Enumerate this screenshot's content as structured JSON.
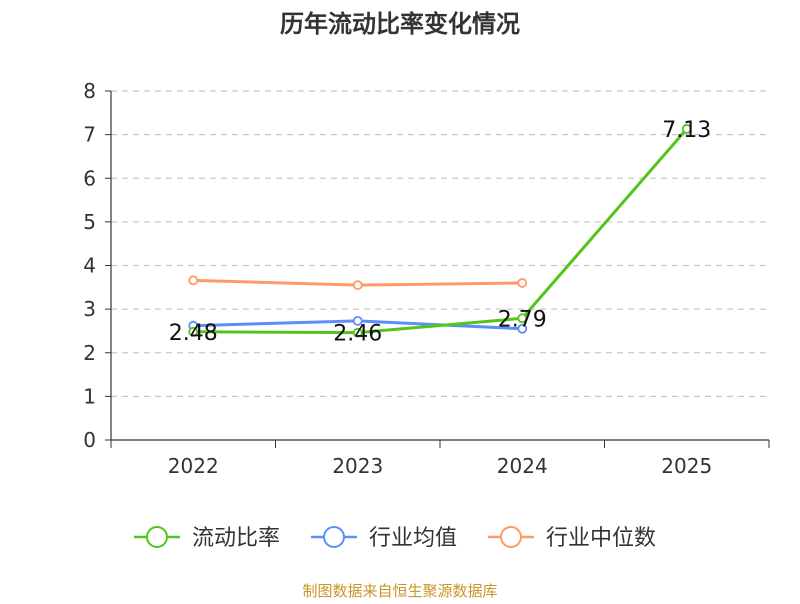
{
  "chart_data": {
    "type": "line",
    "title": "历年流动比率变化情况",
    "categories": [
      "2022",
      "2023",
      "2024",
      "2025"
    ],
    "ylim": [
      0,
      8
    ],
    "yticks": [
      0,
      1,
      2,
      3,
      4,
      5,
      6,
      7,
      8
    ],
    "grid": true,
    "legend_position": "bottom",
    "series": [
      {
        "name": "流动比率",
        "color": "#52c41a",
        "values": [
          2.48,
          2.46,
          2.79,
          7.13
        ],
        "labels": [
          "2.48",
          "2.46",
          "2.79",
          "7.13"
        ]
      },
      {
        "name": "行业均值",
        "color": "#5b8ff9",
        "values": [
          2.62,
          2.73,
          2.55,
          null
        ]
      },
      {
        "name": "行业中位数",
        "color": "#ff9966",
        "values": [
          3.66,
          3.55,
          3.6,
          null
        ]
      }
    ],
    "source": "制图数据来自恒生聚源数据库"
  }
}
